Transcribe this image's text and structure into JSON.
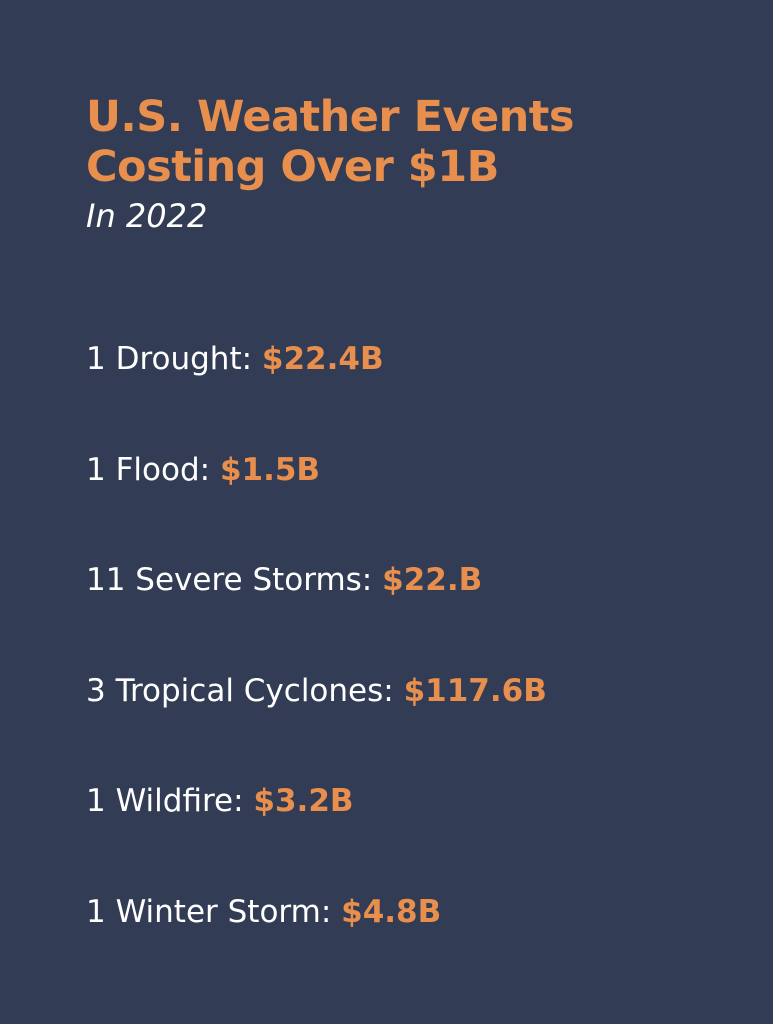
{
  "header": {
    "title_line1": "U.S. Weather Events",
    "title_line2": "Costing Over $1B",
    "subtitle": "In 2022"
  },
  "events": [
    {
      "label": "1 Drought: ",
      "cost": "$22.4B"
    },
    {
      "label": "1 Flood: ",
      "cost": "$1.5B"
    },
    {
      "label": "11 Severe Storms: ",
      "cost": "$22.B"
    },
    {
      "label": "3 Tropical Cyclones: ",
      "cost": "$117.6B"
    },
    {
      "label": "1 Wildfire: ",
      "cost": "$3.2B"
    },
    {
      "label": "1 Winter Storm: ",
      "cost": "$4.8B"
    }
  ],
  "colors": {
    "background": "#323c54",
    "accent": "#e88f4e",
    "text": "#ffffff"
  }
}
